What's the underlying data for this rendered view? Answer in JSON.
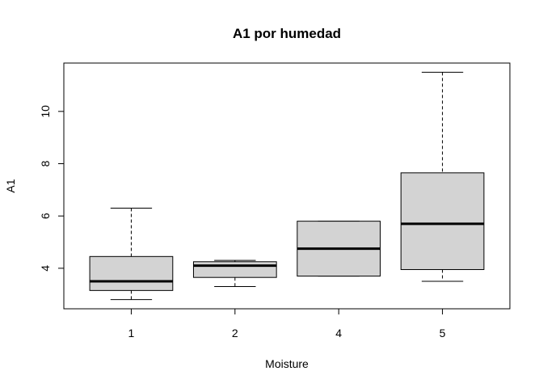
{
  "chart_data": {
    "type": "box",
    "title": "A1 por humedad",
    "xlabel": "Moisture",
    "ylabel": "A1",
    "categories": [
      "1",
      "2",
      "4",
      "5"
    ],
    "boxes": [
      {
        "category": "1",
        "min": 2.8,
        "q1": 3.15,
        "median": 3.5,
        "q3": 4.45,
        "max": 6.3
      },
      {
        "category": "2",
        "min": 3.3,
        "q1": 3.65,
        "median": 4.1,
        "q3": 4.25,
        "max": 4.3
      },
      {
        "category": "4",
        "min": 3.7,
        "q1": 3.7,
        "median": 4.75,
        "q3": 5.8,
        "max": 5.8
      },
      {
        "category": "5",
        "min": 3.5,
        "q1": 3.95,
        "median": 5.7,
        "q3": 7.65,
        "max": 11.5
      }
    ],
    "ylim": [
      2.45,
      11.85
    ],
    "yticks": [
      4,
      6,
      8,
      10
    ],
    "box_fill": "#d3d3d3",
    "grid": false,
    "legend": "none"
  }
}
